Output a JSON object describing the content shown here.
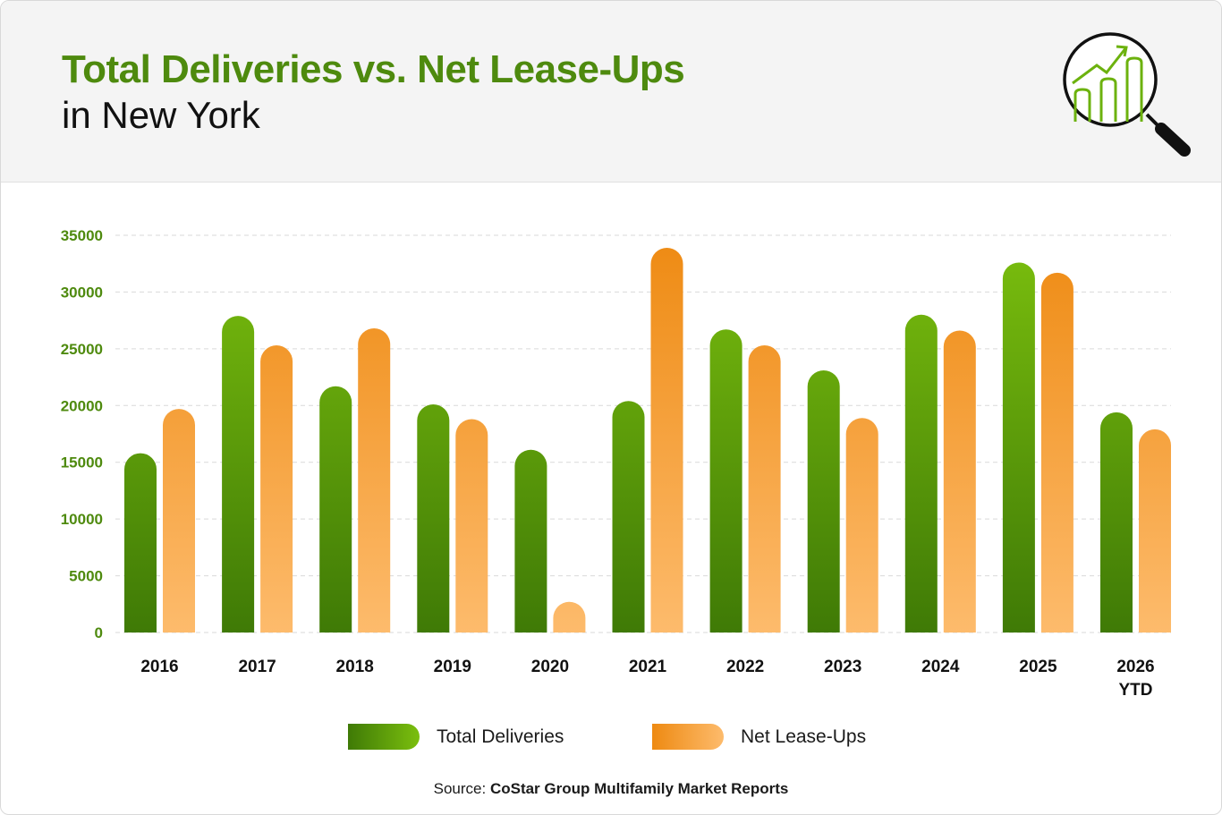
{
  "header": {
    "title": "Total Deliveries vs. Net Lease-Ups",
    "subtitle": "in New York"
  },
  "colors": {
    "deliveries_top": "#7bbf0e",
    "deliveries_bottom": "#3f7a06",
    "leaseups_top": "#ee8a12",
    "leaseups_bottom": "#fdbb6c",
    "axis_text": "#4e8a0e",
    "grid": "#d9d9d9"
  },
  "legend": {
    "deliveries_label": "Total Deliveries",
    "leaseups_label": "Net Lease-Ups"
  },
  "source": {
    "prefix": "Source: ",
    "name": "CoStar Group Multifamily Market Reports"
  },
  "chart_data": {
    "type": "bar",
    "categories": [
      [
        "2016"
      ],
      [
        "2017"
      ],
      [
        "2018"
      ],
      [
        "2019"
      ],
      [
        "2020"
      ],
      [
        "2021"
      ],
      [
        "2022"
      ],
      [
        "2023"
      ],
      [
        "2024"
      ],
      [
        "2025"
      ],
      [
        "2026",
        "YTD"
      ]
    ],
    "series": [
      {
        "name": "Total Deliveries",
        "values": [
          15800,
          27900,
          21700,
          20100,
          16100,
          20400,
          26700,
          23100,
          28000,
          32600,
          19400
        ]
      },
      {
        "name": "Net Lease-Ups",
        "values": [
          19700,
          25300,
          26800,
          18800,
          2700,
          33900,
          25300,
          18900,
          26600,
          31700,
          17900
        ]
      }
    ],
    "y_ticks": [
      0,
      5000,
      10000,
      15000,
      20000,
      25000,
      30000,
      35000
    ],
    "ylim": [
      0,
      35000
    ],
    "grid": true,
    "legend_position": "bottom"
  }
}
